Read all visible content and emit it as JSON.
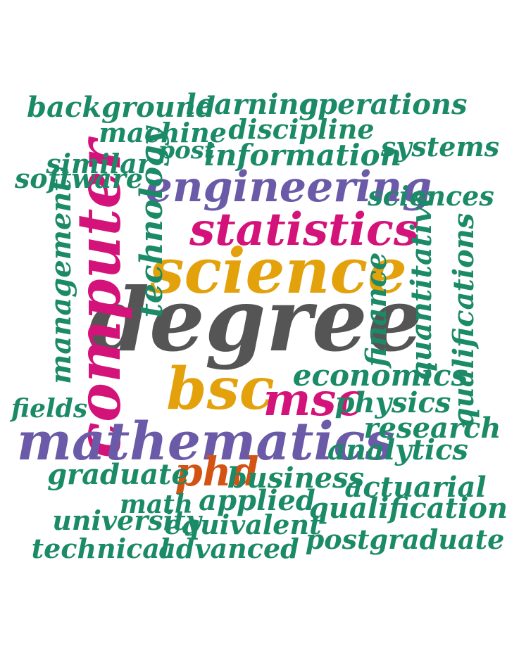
{
  "colors": {
    "green": "#1b8a66",
    "purple": "#6a5aa8",
    "magenta": "#d4137a",
    "gold": "#e3a10c",
    "gray": "#555555",
    "orange": "#d25313"
  },
  "words": [
    {
      "text": "degree",
      "color": "gray",
      "weight": 1.0
    },
    {
      "text": "science",
      "color": "gold",
      "weight": 0.66
    },
    {
      "text": "computer",
      "color": "magenta",
      "weight": 0.63
    },
    {
      "text": "mathematics",
      "color": "purple",
      "weight": 0.58
    },
    {
      "text": "bsc",
      "color": "gold",
      "weight": 0.56
    },
    {
      "text": "statistics",
      "color": "magenta",
      "weight": 0.5
    },
    {
      "text": "msc",
      "color": "magenta",
      "weight": 0.48
    },
    {
      "text": "engineering",
      "color": "purple",
      "weight": 0.45
    },
    {
      "text": "phd",
      "color": "orange",
      "weight": 0.4
    },
    {
      "text": "technology",
      "color": "green",
      "weight": 0.34
    },
    {
      "text": "information",
      "color": "green",
      "weight": 0.32
    },
    {
      "text": "economics",
      "color": "green",
      "weight": 0.32
    },
    {
      "text": "finance",
      "color": "green",
      "weight": 0.3
    },
    {
      "text": "quantitative",
      "color": "green",
      "weight": 0.3
    },
    {
      "text": "management",
      "color": "green",
      "weight": 0.3
    },
    {
      "text": "qualifications",
      "color": "green",
      "weight": 0.3
    },
    {
      "text": "learning",
      "color": "green",
      "weight": 0.3
    },
    {
      "text": "operations",
      "color": "green",
      "weight": 0.29
    },
    {
      "text": "background",
      "color": "green",
      "weight": 0.29
    },
    {
      "text": "physics",
      "color": "green",
      "weight": 0.29
    },
    {
      "text": "research",
      "color": "green",
      "weight": 0.29
    },
    {
      "text": "analytics",
      "color": "green",
      "weight": 0.29
    },
    {
      "text": "graduate",
      "color": "green",
      "weight": 0.29
    },
    {
      "text": "business",
      "color": "green",
      "weight": 0.29
    },
    {
      "text": "applied",
      "color": "green",
      "weight": 0.29
    },
    {
      "text": "qualification",
      "color": "green",
      "weight": 0.29
    },
    {
      "text": "actuarial",
      "color": "green",
      "weight": 0.28
    },
    {
      "text": "university",
      "color": "green",
      "weight": 0.28
    },
    {
      "text": "equivalent",
      "color": "green",
      "weight": 0.28
    },
    {
      "text": "postgraduate",
      "color": "green",
      "weight": 0.28
    },
    {
      "text": "technical",
      "color": "green",
      "weight": 0.27
    },
    {
      "text": "advanced",
      "color": "green",
      "weight": 0.27
    },
    {
      "text": "sciences",
      "color": "green",
      "weight": 0.27
    },
    {
      "text": "systems",
      "color": "green",
      "weight": 0.27
    },
    {
      "text": "discipline",
      "color": "green",
      "weight": 0.27
    },
    {
      "text": "machine",
      "color": "green",
      "weight": 0.27
    },
    {
      "text": "similar",
      "color": "green",
      "weight": 0.27
    },
    {
      "text": "software",
      "color": "green",
      "weight": 0.26
    },
    {
      "text": "fields",
      "color": "green",
      "weight": 0.26
    },
    {
      "text": "math",
      "color": "green",
      "weight": 0.26
    },
    {
      "text": "post",
      "color": "green",
      "weight": 0.24
    }
  ]
}
